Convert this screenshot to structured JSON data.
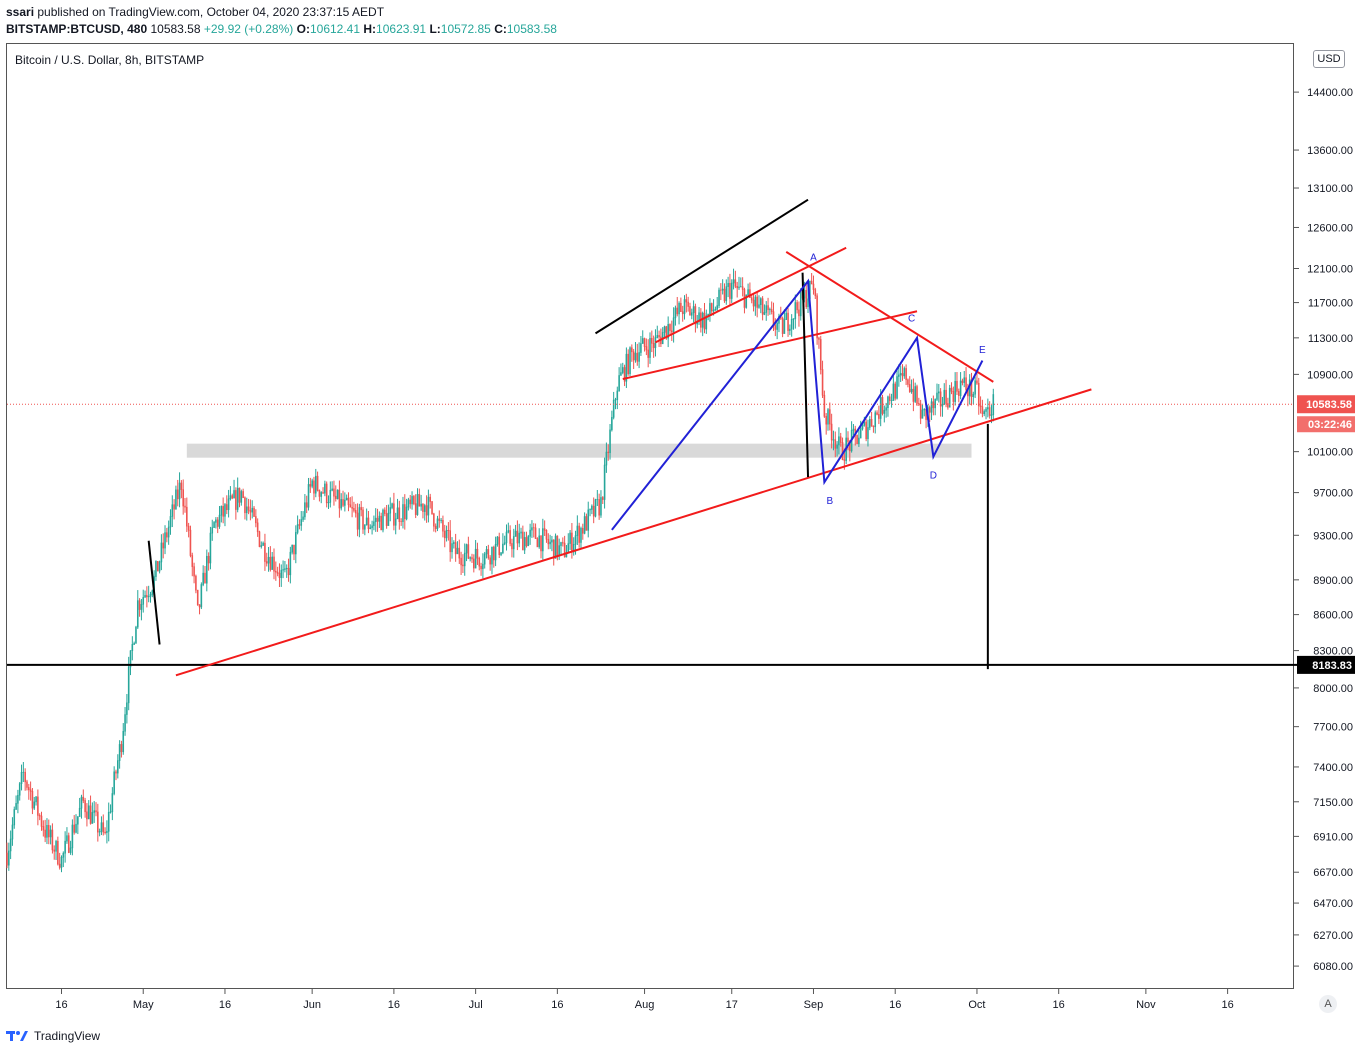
{
  "header": {
    "user": "ssari",
    "published": " published on TradingView.com, October 04, 2020 23:37:15 AEDT",
    "symbol": "BITSTAMP:BTCUSD, 480",
    "last": "10583.58",
    "change": "+29.92 (+0.28%)",
    "o_label": "O:",
    "o": "10612.41",
    "h_label": "H:",
    "h": "10623.91",
    "l_label": "L:",
    "l": "10572.85",
    "c_label": "C:",
    "c": "10583.58"
  },
  "chart_title": "Bitcoin / U.S. Dollar, 8h, BITSTAMP",
  "currency": "USD",
  "price_label": "10583.58",
  "countdown": "03:22:46",
  "level_label": "8183.83",
  "auto_scale": "A",
  "brand": "TradingView",
  "colors": {
    "up": "#26a69a",
    "down": "#ef5350",
    "trend": "#f21b1b",
    "wave": "#2121d6",
    "zone": "#d9d9d9"
  },
  "chart_data": {
    "type": "candlestick",
    "y_scale": "log",
    "ylim": [
      5950,
      15100
    ],
    "y_ticks": [
      6080,
      6270,
      6470,
      6670,
      6910,
      7150,
      7400,
      7700,
      8000,
      8300,
      8600,
      8900,
      9300,
      9700,
      10100,
      10900,
      11300,
      11700,
      12100,
      12600,
      13100,
      13600,
      14400
    ],
    "x_tick_labels": [
      "16",
      "May",
      "16",
      "Jun",
      "16",
      "Jul",
      "16",
      "Aug",
      "17",
      "Sep",
      "16",
      "Oct",
      "16",
      "Nov",
      "16"
    ],
    "x_tick_dates": [
      "2020-04-16",
      "2020-05-01",
      "2020-05-16",
      "2020-06-01",
      "2020-06-16",
      "2020-07-01",
      "2020-07-16",
      "2020-08-01",
      "2020-08-17",
      "2020-09-01",
      "2020-09-16",
      "2020-10-01",
      "2020-10-16",
      "2020-11-01",
      "2020-11-16"
    ],
    "xlim": [
      "2020-04-06",
      "2020-11-28"
    ],
    "wave_labels": [
      {
        "label": "A",
        "date": "2020-09-01",
        "price": 12050
      },
      {
        "label": "B",
        "date": "2020-09-04",
        "price": 9800
      },
      {
        "label": "C",
        "date": "2020-09-19",
        "price": 11350
      },
      {
        "label": "D",
        "date": "2020-09-23",
        "price": 10050
      },
      {
        "label": "E",
        "date": "2020-10-02",
        "price": 11000
      }
    ],
    "wave_path": [
      {
        "date": "2020-07-26",
        "price": 9350
      },
      {
        "date": "2020-08-31",
        "price": 11950
      },
      {
        "date": "2020-09-03",
        "price": 9800
      },
      {
        "date": "2020-09-20",
        "price": 11300
      },
      {
        "date": "2020-09-23",
        "price": 10050
      },
      {
        "date": "2020-10-02",
        "price": 11050
      }
    ],
    "horizontal_level": 8183.83,
    "last_price": 10583.58,
    "zone": {
      "from": "2020-05-09",
      "to": "2020-09-30",
      "low": 10040,
      "high": 10180
    },
    "trendlines": [
      {
        "color": "#f21b1b",
        "from": {
          "date": "2020-05-07",
          "price": 8100
        },
        "to": {
          "date": "2020-10-22",
          "price": 10740
        }
      },
      {
        "color": "#f21b1b",
        "from": {
          "date": "2020-08-27",
          "price": 12300
        },
        "to": {
          "date": "2020-10-04",
          "price": 10820
        }
      },
      {
        "color": "#f21b1b",
        "from": {
          "date": "2020-07-28",
          "price": 10850
        },
        "to": {
          "date": "2020-09-20",
          "price": 11600
        }
      },
      {
        "color": "#f21b1b",
        "from": {
          "date": "2020-08-03",
          "price": 11250
        },
        "to": {
          "date": "2020-09-07",
          "price": 12350
        }
      },
      {
        "color": "#000000",
        "from": {
          "date": "2020-07-23",
          "price": 11350
        },
        "to": {
          "date": "2020-08-31",
          "price": 12950
        }
      },
      {
        "color": "#000000",
        "from": {
          "date": "2020-08-30",
          "price": 12050
        },
        "to": {
          "date": "2020-08-31",
          "price": 9850
        }
      },
      {
        "color": "#000000",
        "from": {
          "date": "2020-10-03",
          "price": 10380
        },
        "to": {
          "date": "2020-10-03",
          "price": 8150
        }
      },
      {
        "color": "#000000",
        "from": {
          "date": "2020-05-02",
          "price": 9250
        },
        "to": {
          "date": "2020-05-04",
          "price": 8350
        }
      }
    ],
    "price_path": [
      {
        "date": "2020-04-06",
        "price": 6800
      },
      {
        "date": "2020-04-09",
        "price": 7350
      },
      {
        "date": "2020-04-13",
        "price": 6950
      },
      {
        "date": "2020-04-16",
        "price": 6750
      },
      {
        "date": "2020-04-20",
        "price": 7150
      },
      {
        "date": "2020-04-24",
        "price": 6900
      },
      {
        "date": "2020-04-27",
        "price": 7600
      },
      {
        "date": "2020-04-30",
        "price": 8700
      },
      {
        "date": "2020-05-03",
        "price": 8900
      },
      {
        "date": "2020-05-08",
        "price": 9800
      },
      {
        "date": "2020-05-11",
        "price": 8600
      },
      {
        "date": "2020-05-14",
        "price": 9400
      },
      {
        "date": "2020-05-19",
        "price": 9700
      },
      {
        "date": "2020-05-23",
        "price": 9200
      },
      {
        "date": "2020-05-27",
        "price": 8900
      },
      {
        "date": "2020-06-01",
        "price": 9800
      },
      {
        "date": "2020-06-06",
        "price": 9600
      },
      {
        "date": "2020-06-11",
        "price": 9400
      },
      {
        "date": "2020-06-16",
        "price": 9500
      },
      {
        "date": "2020-06-22",
        "price": 9600
      },
      {
        "date": "2020-06-27",
        "price": 9150
      },
      {
        "date": "2020-07-02",
        "price": 9100
      },
      {
        "date": "2020-07-07",
        "price": 9250
      },
      {
        "date": "2020-07-12",
        "price": 9300
      },
      {
        "date": "2020-07-17",
        "price": 9150
      },
      {
        "date": "2020-07-21",
        "price": 9400
      },
      {
        "date": "2020-07-24",
        "price": 9600
      },
      {
        "date": "2020-07-27",
        "price": 10800
      },
      {
        "date": "2020-07-30",
        "price": 11150
      },
      {
        "date": "2020-08-03",
        "price": 11250
      },
      {
        "date": "2020-08-08",
        "price": 11650
      },
      {
        "date": "2020-08-12",
        "price": 11500
      },
      {
        "date": "2020-08-17",
        "price": 11900
      },
      {
        "date": "2020-08-21",
        "price": 11700
      },
      {
        "date": "2020-08-26",
        "price": 11400
      },
      {
        "date": "2020-09-01",
        "price": 11900
      },
      {
        "date": "2020-09-03",
        "price": 10500
      },
      {
        "date": "2020-09-06",
        "price": 10100
      },
      {
        "date": "2020-09-10",
        "price": 10300
      },
      {
        "date": "2020-09-14",
        "price": 10600
      },
      {
        "date": "2020-09-18",
        "price": 10900
      },
      {
        "date": "2020-09-21",
        "price": 10450
      },
      {
        "date": "2020-09-24",
        "price": 10600
      },
      {
        "date": "2020-09-28",
        "price": 10800
      },
      {
        "date": "2020-10-01",
        "price": 10700
      },
      {
        "date": "2020-10-02",
        "price": 10450
      },
      {
        "date": "2020-10-04",
        "price": 10583.58
      }
    ]
  }
}
